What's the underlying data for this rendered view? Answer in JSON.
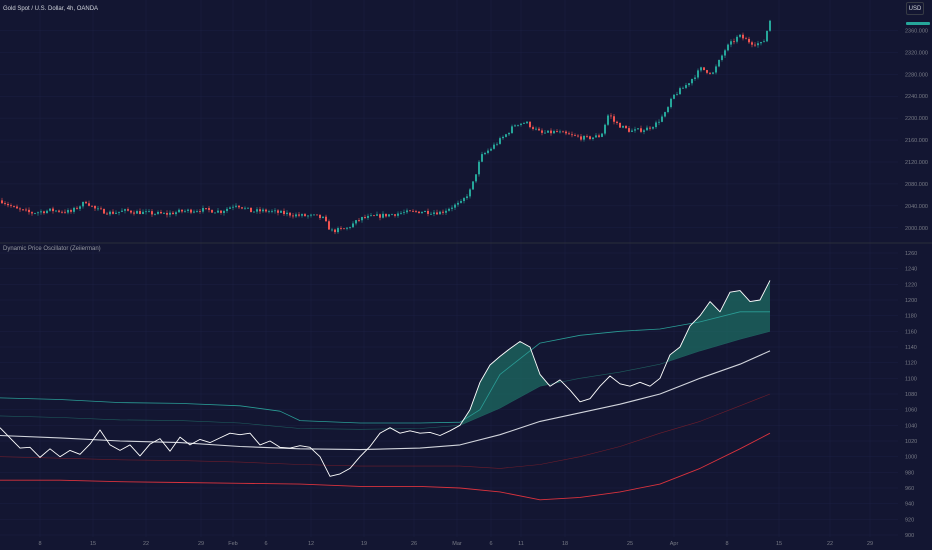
{
  "header": {
    "symbol_title": "Gold Spot / U.S. Dollar, 4h, OANDA",
    "currency": "USD"
  },
  "indicator": {
    "title": "Dynamic Price Oscillator (Zeiierman)"
  },
  "colors": {
    "background": "#131632",
    "up": "#26a69a",
    "down": "#ef5350",
    "grid": "#1c2043",
    "separator": "#2a2e39",
    "axis_text": "#787b86",
    "oscillator": "#ffffff",
    "midline": "#d1d4dc",
    "upper_band": "#2a9d96",
    "upper_inner": "#1f5f5f",
    "lower_band": "#d8323d",
    "lower_inner": "#6e1d2c",
    "fill_up": "#1e6b62",
    "fill_down": "#a6253c"
  },
  "chart_data": [
    {
      "type": "candlestick",
      "title": "Gold Spot / U.S. Dollar, 4h, OANDA",
      "ylim": [
        1985,
        2390
      ],
      "y_ticks": [
        "2360.000",
        "2320.000",
        "2280.000",
        "2240.000",
        "2200.000",
        "2160.000",
        "2120.000",
        "2080.000",
        "2040.000",
        "2000.000"
      ],
      "close_anchors": [
        [
          0,
          2050
        ],
        [
          15,
          2034
        ],
        [
          30,
          2027
        ],
        [
          50,
          2032
        ],
        [
          70,
          2029
        ],
        [
          85,
          2048
        ],
        [
          95,
          2033
        ],
        [
          110,
          2027
        ],
        [
          125,
          2031
        ],
        [
          145,
          2027
        ],
        [
          165,
          2025
        ],
        [
          180,
          2030
        ],
        [
          200,
          2033
        ],
        [
          220,
          2030
        ],
        [
          235,
          2043
        ],
        [
          250,
          2030
        ],
        [
          265,
          2031
        ],
        [
          280,
          2027
        ],
        [
          300,
          2022
        ],
        [
          315,
          2021
        ],
        [
          322,
          2017
        ],
        [
          330,
          1994
        ],
        [
          345,
          1998
        ],
        [
          360,
          2017
        ],
        [
          380,
          2022
        ],
        [
          400,
          2027
        ],
        [
          420,
          2030
        ],
        [
          440,
          2028
        ],
        [
          450,
          2038
        ],
        [
          460,
          2045
        ],
        [
          470,
          2070
        ],
        [
          480,
          2130
        ],
        [
          490,
          2145
        ],
        [
          505,
          2170
        ],
        [
          515,
          2190
        ],
        [
          525,
          2192
        ],
        [
          540,
          2172
        ],
        [
          555,
          2175
        ],
        [
          570,
          2168
        ],
        [
          585,
          2163
        ],
        [
          600,
          2168
        ],
        [
          608,
          2210
        ],
        [
          612,
          2195
        ],
        [
          620,
          2185
        ],
        [
          630,
          2176
        ],
        [
          645,
          2180
        ],
        [
          655,
          2190
        ],
        [
          665,
          2210
        ],
        [
          672,
          2240
        ],
        [
          685,
          2260
        ],
        [
          700,
          2290
        ],
        [
          712,
          2282
        ],
        [
          725,
          2328
        ],
        [
          738,
          2350
        ],
        [
          750,
          2338
        ],
        [
          762,
          2335
        ],
        [
          770,
          2385
        ]
      ]
    },
    {
      "type": "line",
      "title": "Dynamic Price Oscillator (Zeiierman)",
      "ylim": [
        900,
        1260
      ],
      "y_ticks": [
        "1260",
        "1240",
        "1220",
        "1200",
        "1180",
        "1160",
        "1140",
        "1120",
        "1100",
        "1080",
        "1060",
        "1040",
        "1020",
        "1000",
        "980",
        "960",
        "940",
        "920",
        "900"
      ],
      "x_ticks": [
        "8",
        "15",
        "22",
        "29",
        "Feb",
        "6",
        "12",
        "19",
        "26",
        "Mar",
        "6",
        "11",
        "18",
        "25",
        "Apr",
        "8",
        "15",
        "22",
        "29"
      ],
      "series": [
        {
          "key": "oscillator",
          "points": [
            [
              0,
              1037
            ],
            [
              10,
              1024
            ],
            [
              20,
              1011
            ],
            [
              30,
              1012
            ],
            [
              40,
              999
            ],
            [
              50,
              1010
            ],
            [
              60,
              1000
            ],
            [
              70,
              1008
            ],
            [
              80,
              1003
            ],
            [
              90,
              1016
            ],
            [
              100,
              1034
            ],
            [
              110,
              1015
            ],
            [
              120,
              1008
            ],
            [
              130,
              1015
            ],
            [
              140,
              1001
            ],
            [
              150,
              1016
            ],
            [
              160,
              1023
            ],
            [
              170,
              1007
            ],
            [
              180,
              1025
            ],
            [
              190,
              1015
            ],
            [
              200,
              1022
            ],
            [
              210,
              1018
            ],
            [
              220,
              1024
            ],
            [
              230,
              1030
            ],
            [
              240,
              1028
            ],
            [
              250,
              1030
            ],
            [
              260,
              1015
            ],
            [
              270,
              1020
            ],
            [
              280,
              1012
            ],
            [
              290,
              1011
            ],
            [
              300,
              1014
            ],
            [
              310,
              1012
            ],
            [
              320,
              1000
            ],
            [
              330,
              975
            ],
            [
              340,
              978
            ],
            [
              350,
              985
            ],
            [
              360,
              1000
            ],
            [
              370,
              1013
            ],
            [
              380,
              1030
            ],
            [
              390,
              1037
            ],
            [
              400,
              1030
            ],
            [
              410,
              1033
            ],
            [
              420,
              1030
            ],
            [
              430,
              1031
            ],
            [
              440,
              1027
            ],
            [
              450,
              1033
            ],
            [
              460,
              1040
            ],
            [
              470,
              1060
            ],
            [
              480,
              1095
            ],
            [
              490,
              1117
            ],
            [
              500,
              1128
            ],
            [
              510,
              1138
            ],
            [
              520,
              1147
            ],
            [
              530,
              1140
            ],
            [
              540,
              1105
            ],
            [
              550,
              1090
            ],
            [
              560,
              1098
            ],
            [
              570,
              1085
            ],
            [
              580,
              1070
            ],
            [
              590,
              1074
            ],
            [
              600,
              1090
            ],
            [
              610,
              1103
            ],
            [
              620,
              1093
            ],
            [
              630,
              1090
            ],
            [
              640,
              1095
            ],
            [
              650,
              1090
            ],
            [
              660,
              1100
            ],
            [
              670,
              1130
            ],
            [
              680,
              1140
            ],
            [
              690,
              1167
            ],
            [
              700,
              1180
            ],
            [
              710,
              1198
            ],
            [
              720,
              1185
            ],
            [
              730,
              1210
            ],
            [
              740,
              1212
            ],
            [
              750,
              1198
            ],
            [
              760,
              1200
            ],
            [
              770,
              1225
            ]
          ]
        },
        {
          "key": "midline",
          "points": [
            [
              0,
              1027
            ],
            [
              60,
              1024
            ],
            [
              120,
              1020
            ],
            [
              180,
              1018
            ],
            [
              240,
              1013
            ],
            [
              300,
              1010
            ],
            [
              360,
              1009
            ],
            [
              420,
              1011
            ],
            [
              460,
              1015
            ],
            [
              500,
              1028
            ],
            [
              540,
              1045
            ],
            [
              580,
              1056
            ],
            [
              620,
              1067
            ],
            [
              660,
              1080
            ],
            [
              700,
              1100
            ],
            [
              740,
              1118
            ],
            [
              770,
              1135
            ]
          ]
        },
        {
          "key": "upper_band",
          "points": [
            [
              0,
              1075
            ],
            [
              60,
              1073
            ],
            [
              120,
              1069
            ],
            [
              180,
              1068
            ],
            [
              240,
              1065
            ],
            [
              280,
              1058
            ],
            [
              300,
              1046
            ],
            [
              360,
              1043
            ],
            [
              420,
              1043
            ],
            [
              460,
              1044
            ],
            [
              480,
              1060
            ],
            [
              500,
              1105
            ],
            [
              540,
              1145
            ],
            [
              580,
              1155
            ],
            [
              620,
              1160
            ],
            [
              660,
              1163
            ],
            [
              700,
              1172
            ],
            [
              740,
              1185
            ],
            [
              770,
              1185
            ]
          ]
        },
        {
          "key": "upper_inner",
          "points": [
            [
              0,
              1052
            ],
            [
              60,
              1050
            ],
            [
              120,
              1047
            ],
            [
              180,
              1046
            ],
            [
              240,
              1043
            ],
            [
              300,
              1036
            ],
            [
              360,
              1035
            ],
            [
              420,
              1036
            ],
            [
              460,
              1040
            ],
            [
              500,
              1062
            ],
            [
              540,
              1090
            ],
            [
              580,
              1100
            ],
            [
              620,
              1108
            ],
            [
              660,
              1118
            ],
            [
              700,
              1135
            ],
            [
              740,
              1150
            ],
            [
              770,
              1160
            ]
          ]
        },
        {
          "key": "lower_inner",
          "points": [
            [
              0,
              1000
            ],
            [
              60,
              998
            ],
            [
              120,
              996
            ],
            [
              180,
              995
            ],
            [
              240,
              993
            ],
            [
              300,
              990
            ],
            [
              360,
              988
            ],
            [
              420,
              988
            ],
            [
              460,
              988
            ],
            [
              500,
              985
            ],
            [
              540,
              990
            ],
            [
              580,
              1000
            ],
            [
              620,
              1013
            ],
            [
              660,
              1030
            ],
            [
              700,
              1045
            ],
            [
              740,
              1065
            ],
            [
              770,
              1080
            ]
          ]
        },
        {
          "key": "lower_band",
          "points": [
            [
              0,
              970
            ],
            [
              60,
              970
            ],
            [
              120,
              968
            ],
            [
              180,
              967
            ],
            [
              240,
              966
            ],
            [
              300,
              965
            ],
            [
              360,
              962
            ],
            [
              420,
              962
            ],
            [
              460,
              960
            ],
            [
              500,
              955
            ],
            [
              540,
              945
            ],
            [
              580,
              948
            ],
            [
              620,
              955
            ],
            [
              660,
              965
            ],
            [
              700,
              985
            ],
            [
              740,
              1010
            ],
            [
              770,
              1030
            ]
          ]
        }
      ]
    }
  ]
}
